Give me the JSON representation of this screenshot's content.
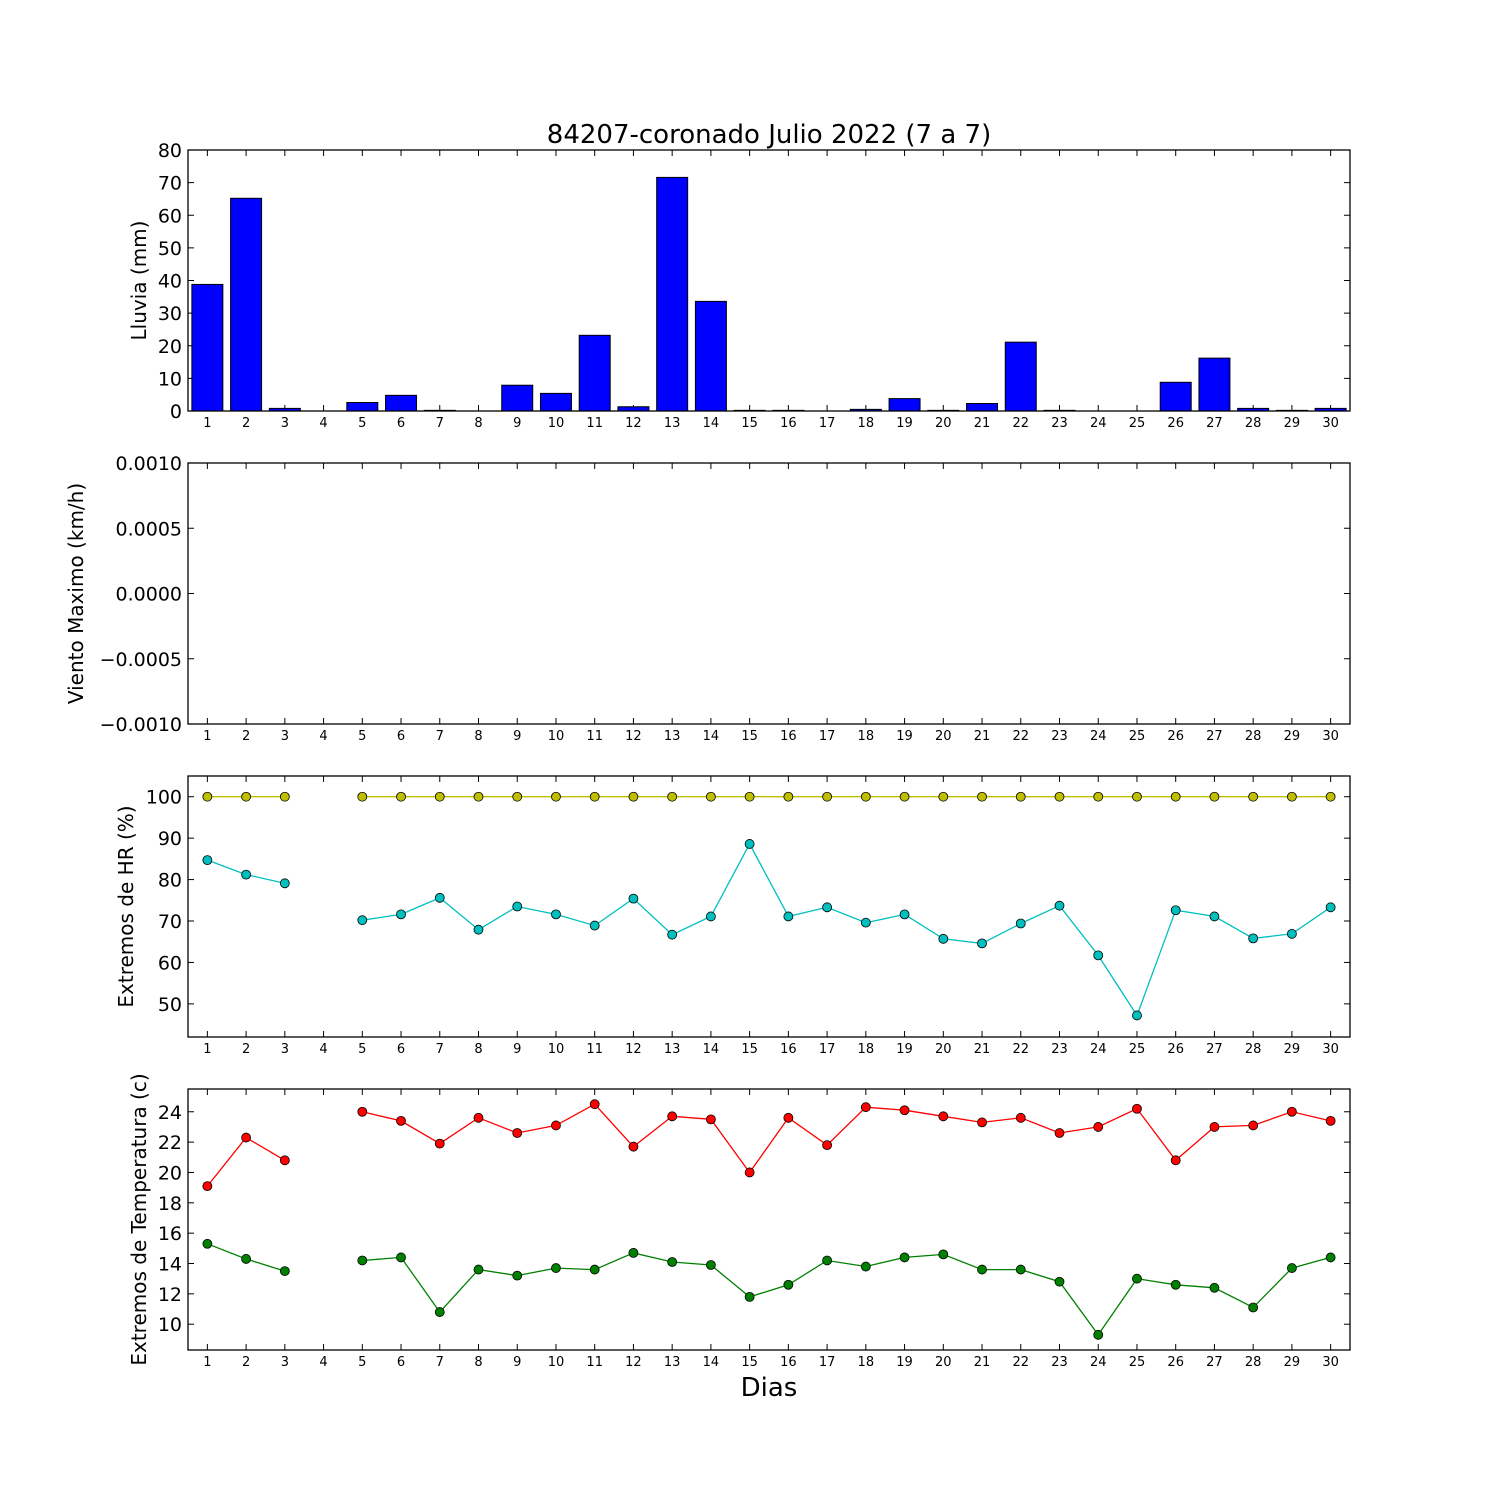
{
  "chart_data": [
    {
      "type": "bar",
      "title": "84207-coronado Julio 2022  (7 a 7)",
      "ylabel": "Lluvia (mm)",
      "xlabel": "",
      "ylim": [
        0,
        80
      ],
      "yticks": [
        "0",
        "10",
        "20",
        "30",
        "40",
        "50",
        "60",
        "70",
        "80"
      ],
      "categories": [
        "1",
        "2",
        "3",
        "4",
        "5",
        "6",
        "7",
        "8",
        "9",
        "10",
        "11",
        "12",
        "13",
        "14",
        "15",
        "16",
        "17",
        "18",
        "19",
        "20",
        "21",
        "22",
        "23",
        "24",
        "25",
        "26",
        "27",
        "28",
        "29",
        "30"
      ],
      "series": [
        {
          "color": "#0000ff",
          "values": [
            38.8,
            65.2,
            0.8,
            0,
            2.6,
            4.8,
            0.2,
            0,
            7.9,
            5.4,
            23.2,
            1.3,
            71.6,
            33.6,
            0.2,
            0.2,
            0,
            0.5,
            3.8,
            0.2,
            2.3,
            21.1,
            0.2,
            0,
            0,
            8.8,
            16.2,
            0.8,
            0.2,
            0.8
          ]
        }
      ]
    },
    {
      "type": "line",
      "ylabel": "Viento Maximo (km/h)",
      "xlabel": "",
      "ylim": [
        -0.001,
        0.001
      ],
      "yticks": [
        "−0.0010",
        "−0.0005",
        "0.0000",
        "0.0005",
        "0.0010"
      ],
      "categories": [
        "1",
        "2",
        "3",
        "4",
        "5",
        "6",
        "7",
        "8",
        "9",
        "10",
        "11",
        "12",
        "13",
        "14",
        "15",
        "16",
        "17",
        "18",
        "19",
        "20",
        "21",
        "22",
        "23",
        "24",
        "25",
        "26",
        "27",
        "28",
        "29",
        "30"
      ],
      "series": []
    },
    {
      "type": "line",
      "ylabel": "Extremos de HR (%)",
      "xlabel": "",
      "ylim": [
        42,
        105
      ],
      "yticks": [
        "50",
        "60",
        "70",
        "80",
        "90",
        "100"
      ],
      "categories": [
        "1",
        "2",
        "3",
        "4",
        "5",
        "6",
        "7",
        "8",
        "9",
        "10",
        "11",
        "12",
        "13",
        "14",
        "15",
        "16",
        "17",
        "18",
        "19",
        "20",
        "21",
        "22",
        "23",
        "24",
        "25",
        "26",
        "27",
        "28",
        "29",
        "30"
      ],
      "series": [
        {
          "color": "#bfbf00",
          "values": [
            100,
            100,
            100,
            null,
            100,
            100,
            100,
            100,
            100,
            100,
            100,
            100,
            100,
            100,
            100,
            100,
            100,
            100,
            100,
            100,
            100,
            100,
            100,
            100,
            100,
            100,
            100,
            100,
            100,
            100
          ]
        },
        {
          "color": "#00bfbf",
          "values": [
            84.7,
            81.2,
            79.1,
            null,
            70.2,
            71.6,
            75.6,
            67.9,
            73.5,
            71.6,
            68.9,
            75.4,
            66.7,
            71.1,
            88.6,
            71.1,
            73.3,
            69.6,
            71.6,
            65.7,
            64.6,
            69.4,
            73.7,
            61.7,
            47.2,
            72.6,
            71.1,
            65.8,
            66.9,
            73.3
          ]
        }
      ]
    },
    {
      "type": "line",
      "ylabel": "Extremos de Temperatura (c)",
      "xlabel": "Dias",
      "ylim": [
        8.3,
        25.5
      ],
      "yticks": [
        "10",
        "12",
        "14",
        "16",
        "18",
        "20",
        "22",
        "24"
      ],
      "categories": [
        "1",
        "2",
        "3",
        "4",
        "5",
        "6",
        "7",
        "8",
        "9",
        "10",
        "11",
        "12",
        "13",
        "14",
        "15",
        "16",
        "17",
        "18",
        "19",
        "20",
        "21",
        "22",
        "23",
        "24",
        "25",
        "26",
        "27",
        "28",
        "29",
        "30"
      ],
      "series": [
        {
          "color": "#ff0000",
          "values": [
            19.1,
            22.3,
            20.8,
            null,
            24.0,
            23.4,
            21.9,
            23.6,
            22.6,
            23.1,
            24.5,
            21.7,
            23.7,
            23.5,
            20.0,
            23.6,
            21.8,
            24.3,
            24.1,
            23.7,
            23.3,
            23.6,
            22.6,
            23.0,
            24.2,
            20.8,
            23.0,
            23.1,
            24.0,
            23.4
          ]
        },
        {
          "color": "#008000",
          "values": [
            15.3,
            14.3,
            13.5,
            null,
            14.2,
            14.4,
            10.8,
            13.6,
            13.2,
            13.7,
            13.6,
            14.7,
            14.1,
            13.9,
            11.8,
            12.6,
            14.2,
            13.8,
            14.4,
            14.6,
            13.6,
            13.6,
            12.8,
            9.3,
            13.0,
            12.6,
            12.4,
            11.1,
            13.7,
            14.4
          ]
        }
      ]
    }
  ]
}
